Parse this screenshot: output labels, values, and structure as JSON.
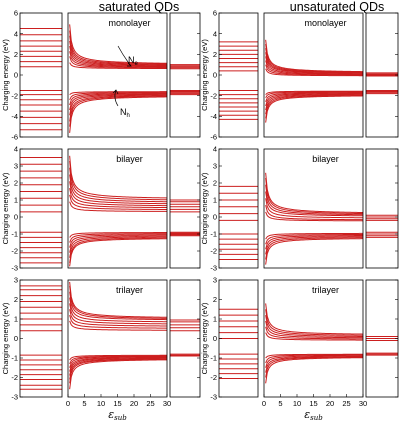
{
  "figure": {
    "column_titles": [
      "saturated QDs",
      "unsaturated QDs"
    ],
    "ylabel": "Charging energy (eV)",
    "xlabel": "εsub",
    "xlabel_main": "ε",
    "xlabel_sub": "sub",
    "line_color": "#cc1f1f",
    "annotations": {
      "electron": "Ne",
      "hole": "Nh"
    }
  },
  "chart_data": [
    {
      "type": "line",
      "column": "saturated QDs",
      "label": "monolayer",
      "ylim": [
        -6,
        6
      ],
      "yticks": [
        -6,
        -4,
        -2,
        0,
        2,
        4,
        6
      ],
      "xlim": [
        0,
        30
      ],
      "xticks": [],
      "left_levels": [
        0.8,
        1.3,
        1.8,
        2.3,
        2.8,
        3.3,
        3.9,
        4.5,
        -1.5,
        -1.9,
        -2.4,
        -2.9,
        -3.5,
        -4.1,
        -4.7,
        -5.3
      ],
      "electron_curves": {
        "x0": 0.5,
        "start": [
          1.2,
          1.8,
          2.3,
          2.8,
          3.3,
          3.8,
          4.3,
          4.9
        ],
        "end": [
          0.6,
          0.65,
          0.7,
          0.75,
          0.8,
          0.85,
          0.9,
          0.95
        ]
      },
      "hole_curves": {
        "x0": 0.5,
        "start": [
          -1.9,
          -2.4,
          -2.9,
          -3.4,
          -3.9,
          -4.5,
          -5.0,
          -5.6
        ],
        "end": [
          -1.6,
          -1.65,
          -1.7,
          -1.75,
          -1.8,
          -1.85,
          -1.9,
          -1.95
        ]
      },
      "right_levels": [
        0.6,
        0.7,
        0.8,
        0.9,
        1.0,
        -1.5,
        -1.6,
        -1.7,
        -1.8,
        -1.9
      ]
    },
    {
      "type": "line",
      "column": "saturated QDs",
      "label": "bilayer",
      "ylim": [
        -3,
        4
      ],
      "yticks": [
        -3,
        -2,
        -1,
        0,
        1,
        2,
        3,
        4
      ],
      "xlim": [
        0,
        30
      ],
      "xticks": [],
      "left_levels": [
        0.3,
        0.7,
        1.1,
        1.5,
        1.9,
        2.3,
        2.7,
        3.1,
        3.5,
        -0.9,
        -1.2,
        -1.5,
        -1.8,
        -2.1,
        -2.4,
        -2.7
      ],
      "electron_curves": {
        "x0": 0.5,
        "start": [
          0.9,
          1.3,
          1.7,
          2.1,
          2.5,
          2.9,
          3.3,
          3.6
        ],
        "end": [
          0.3,
          0.4,
          0.5,
          0.6,
          0.7,
          0.8,
          0.9,
          1.0
        ]
      },
      "hole_curves": {
        "x0": 0.5,
        "start": [
          -1.2,
          -1.5,
          -1.8,
          -2.1,
          -2.4,
          -2.7,
          -2.9
        ],
        "end": [
          -0.9,
          -0.95,
          -1.0,
          -1.05,
          -1.1,
          -1.15,
          -1.2
        ]
      },
      "right_levels": [
        0.3,
        0.45,
        0.6,
        0.75,
        0.9,
        1.0,
        -0.9,
        -0.95,
        -1.0,
        -1.05,
        -1.1
      ]
    },
    {
      "type": "line",
      "column": "saturated QDs",
      "label": "trilayer",
      "ylim": [
        -3,
        3
      ],
      "yticks": [
        -3,
        -2,
        -1,
        0,
        1,
        2,
        3
      ],
      "xlim": [
        0,
        30
      ],
      "xticks": [
        0,
        5,
        10,
        15,
        20,
        25,
        30
      ],
      "left_levels": [
        0.4,
        0.7,
        1.0,
        1.3,
        1.6,
        1.9,
        2.2,
        2.5,
        2.7,
        -0.85,
        -1.1,
        -1.35,
        -1.6,
        -1.85,
        -2.1,
        -2.4,
        -2.6
      ],
      "electron_curves": {
        "x0": 0.5,
        "start": [
          0.9,
          1.2,
          1.5,
          1.8,
          2.1,
          2.4,
          2.7,
          2.9
        ],
        "end": [
          0.4,
          0.5,
          0.6,
          0.7,
          0.8,
          0.9,
          0.95,
          1.0
        ]
      },
      "hole_curves": {
        "x0": 0.5,
        "start": [
          -1.1,
          -1.3,
          -1.5,
          -1.7,
          -1.9,
          -2.1,
          -2.3,
          -2.6
        ],
        "end": [
          -0.85,
          -0.88,
          -0.9,
          -0.93,
          -0.95,
          -0.98,
          -1.0,
          -1.02
        ]
      },
      "right_levels": [
        0.4,
        0.55,
        0.7,
        0.85,
        0.95,
        -0.8,
        -0.85,
        -0.9
      ]
    },
    {
      "type": "line",
      "column": "unsaturated QDs",
      "label": "monolayer",
      "ylim": [
        -6,
        6
      ],
      "yticks": [
        -6,
        -4,
        -2,
        0,
        2,
        4,
        6
      ],
      "xlim": [
        0,
        30
      ],
      "xticks": [],
      "left_levels": [
        0.4,
        0.8,
        1.2,
        1.6,
        2.0,
        2.4,
        2.8,
        3.2,
        -1.5,
        -1.9,
        -2.3,
        -2.7,
        -3.1,
        -3.5,
        -3.9,
        -4.3
      ],
      "electron_curves": {
        "x0": 0.5,
        "start": [
          0.6,
          1.0,
          1.4,
          1.8,
          2.2,
          2.6,
          3.0,
          3.4
        ],
        "end": [
          -0.1,
          -0.05,
          0.0,
          0.05,
          0.1,
          0.12,
          0.15,
          0.18
        ]
      },
      "hole_curves": {
        "x0": 0.5,
        "start": [
          -1.9,
          -2.2,
          -2.6,
          -3.0,
          -3.4,
          -3.8,
          -4.2,
          -4.6
        ],
        "end": [
          -1.55,
          -1.6,
          -1.65,
          -1.7,
          -1.75,
          -1.8,
          -1.85,
          -1.9
        ]
      },
      "right_levels": [
        -0.1,
        0.0,
        0.1,
        0.2,
        -1.5,
        -1.6,
        -1.7,
        -1.8
      ]
    },
    {
      "type": "line",
      "column": "unsaturated QDs",
      "label": "bilayer",
      "ylim": [
        -3,
        4
      ],
      "yticks": [
        -3,
        -2,
        -1,
        0,
        1,
        2,
        3,
        4
      ],
      "xlim": [
        0,
        30
      ],
      "xticks": [],
      "left_levels": [
        -0.2,
        0.2,
        0.6,
        1.0,
        1.4,
        1.8,
        -1.0,
        -1.3,
        -1.6,
        -1.9,
        -2.2,
        -2.5
      ],
      "electron_curves": {
        "x0": 0.5,
        "start": [
          0.3,
          0.7,
          1.1,
          1.5,
          1.9,
          2.3,
          2.6
        ],
        "end": [
          -0.25,
          -0.2,
          -0.1,
          0.0,
          0.05,
          0.1,
          0.15
        ]
      },
      "hole_curves": {
        "x0": 0.5,
        "start": [
          -1.3,
          -1.6,
          -1.9,
          -2.2,
          -2.5,
          -2.8
        ],
        "end": [
          -0.95,
          -1.0,
          -1.05,
          -1.1,
          -1.15,
          -1.2
        ]
      },
      "right_levels": [
        -0.2,
        -0.1,
        0.0,
        0.1,
        -0.9,
        -1.0,
        -1.1,
        -1.2
      ]
    },
    {
      "type": "line",
      "column": "unsaturated QDs",
      "label": "trilayer",
      "ylim": [
        -3,
        3
      ],
      "yticks": [
        -3,
        -2,
        -1,
        0,
        1,
        2,
        3
      ],
      "xlim": [
        0,
        30
      ],
      "xticks": [
        0,
        5,
        10,
        15,
        20,
        25,
        30
      ],
      "left_levels": [
        0.0,
        0.3,
        0.6,
        0.9,
        1.2,
        1.5,
        -0.8,
        -1.05,
        -1.3,
        -1.55,
        -1.8,
        -2.05
      ],
      "electron_curves": {
        "x0": 0.5,
        "start": [
          0.3,
          0.6,
          0.9,
          1.2,
          1.5,
          1.8
        ],
        "end": [
          -0.1,
          -0.05,
          0.0,
          0.05,
          0.1,
          0.15
        ]
      },
      "hole_curves": {
        "x0": 0.5,
        "start": [
          -1.0,
          -1.25,
          -1.5,
          -1.75,
          -2.0,
          -2.3
        ],
        "end": [
          -0.8,
          -0.82,
          -0.85,
          -0.88,
          -0.9,
          -0.92
        ]
      },
      "right_levels": [
        -0.1,
        0.0,
        0.1,
        -0.75,
        -0.8,
        -0.85
      ]
    }
  ]
}
